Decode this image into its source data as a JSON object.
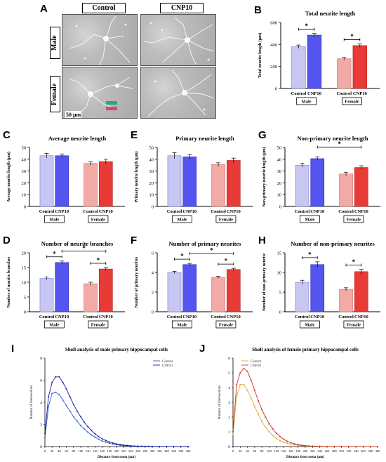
{
  "micrograph": {
    "letter": "A",
    "col_labels": [
      "Control",
      "CNP10"
    ],
    "row_labels": [
      "Male",
      "Female"
    ],
    "scale_bar": "50 μm"
  },
  "colors": {
    "control_male": "#c7c7f2",
    "cnp10_male": "#5454ee",
    "control_female": "#f2aaa6",
    "cnp10_female": "#e83a36",
    "sholl_male_control": "#2e5fd6",
    "sholl_male_cnp10": "#1a1a9e",
    "sholl_female_control": "#e8a830",
    "sholl_female_cnp10": "#c0392b"
  },
  "chart_data": [
    {
      "id": "B",
      "type": "bar",
      "title": "Total neurite length",
      "ylabel": "Total neurite length (μm)",
      "ylim": [
        0,
        600
      ],
      "yticks": [
        0,
        200,
        400,
        600
      ],
      "categories": [
        "Control",
        "CNP10",
        "Control",
        "CNP10"
      ],
      "groups": [
        "Male",
        "Female"
      ],
      "values": [
        380,
        485,
        270,
        390
      ],
      "errors": [
        15,
        15,
        12,
        15
      ],
      "sig": [
        {
          "a": 0,
          "b": 1,
          "label": "*"
        },
        {
          "a": 2,
          "b": 3,
          "label": "*"
        }
      ]
    },
    {
      "id": "C",
      "type": "bar",
      "title": "Average neurite length",
      "ylabel": "Average neurite length (μm)",
      "ylim": [
        0,
        50
      ],
      "yticks": [
        0,
        10,
        20,
        30,
        40,
        50
      ],
      "categories": [
        "Control",
        "CNP10",
        "Control",
        "CNP10"
      ],
      "groups": [
        "Male",
        "Female"
      ],
      "values": [
        43,
        43,
        36.5,
        38
      ],
      "errors": [
        2,
        1.5,
        1.5,
        2
      ],
      "sig": []
    },
    {
      "id": "E",
      "type": "bar",
      "title": "Primary neurite length",
      "ylabel": "Primary neurite length (μm)",
      "ylim": [
        0,
        50
      ],
      "yticks": [
        0,
        10,
        20,
        30,
        40,
        50
      ],
      "categories": [
        "Control",
        "CNP10",
        "Control",
        "CNP10"
      ],
      "groups": [
        "Male",
        "Female"
      ],
      "values": [
        43,
        42,
        35.5,
        39
      ],
      "errors": [
        2.5,
        2,
        1.5,
        2
      ],
      "sig": []
    },
    {
      "id": "G",
      "type": "bar",
      "title": "Non-primary neurite length",
      "ylabel": "Non-primary neurite length (μm)",
      "ylim": [
        0,
        50
      ],
      "yticks": [
        0,
        10,
        20,
        30,
        40,
        50
      ],
      "categories": [
        "Control",
        "CNP10",
        "Control",
        "CNP10"
      ],
      "groups": [
        "Male",
        "Female"
      ],
      "values": [
        35,
        40.5,
        27.5,
        33
      ],
      "errors": [
        1.5,
        1.5,
        1.5,
        1.5
      ],
      "sig": [
        {
          "a": 1,
          "b": 3,
          "label": "*"
        }
      ]
    },
    {
      "id": "D",
      "type": "bar",
      "title": "Number of neurite branches",
      "ylabel": "Number of neurite branches",
      "ylim": [
        0,
        20
      ],
      "yticks": [
        0,
        5,
        10,
        15,
        20
      ],
      "categories": [
        "Control",
        "CNP10",
        "Control",
        "CNP10"
      ],
      "groups": [
        "Male",
        "Female"
      ],
      "values": [
        11.3,
        16.7,
        9.5,
        14.5
      ],
      "errors": [
        0.5,
        0.5,
        0.5,
        0.5
      ],
      "sig": [
        {
          "a": 0,
          "b": 1,
          "label": "*"
        },
        {
          "a": 2,
          "b": 3,
          "label": "*"
        },
        {
          "a": 1,
          "b": 3,
          "label": "*"
        }
      ]
    },
    {
      "id": "F",
      "type": "bar",
      "title": "Number of primary neurites",
      "ylabel": "Number of primary neurites",
      "ylim": [
        0,
        6
      ],
      "yticks": [
        0,
        2,
        4,
        6
      ],
      "categories": [
        "Control",
        "CNP10",
        "Control",
        "CNP10"
      ],
      "groups": [
        "Male",
        "Female"
      ],
      "values": [
        4.0,
        4.8,
        3.5,
        4.3
      ],
      "errors": [
        0.12,
        0.12,
        0.12,
        0.12
      ],
      "sig": [
        {
          "a": 0,
          "b": 1,
          "label": "*"
        },
        {
          "a": 2,
          "b": 3,
          "label": "*"
        },
        {
          "a": 1,
          "b": 3,
          "label": "*"
        }
      ]
    },
    {
      "id": "H",
      "type": "bar",
      "title": "Number of non-primary neurites",
      "ylabel": "Number of non-primary neurite",
      "ylim": [
        0,
        15
      ],
      "yticks": [
        0,
        5,
        10,
        15
      ],
      "categories": [
        "Control",
        "CNP10",
        "Control",
        "CNP10"
      ],
      "groups": [
        "Male",
        "Female"
      ],
      "values": [
        7.5,
        12,
        5.7,
        10.2
      ],
      "errors": [
        0.5,
        0.7,
        0.4,
        0.6
      ],
      "sig": [
        {
          "a": 0,
          "b": 1,
          "label": "*"
        },
        {
          "a": 2,
          "b": 3,
          "label": "*"
        }
      ]
    },
    {
      "id": "I",
      "type": "line",
      "title": "Sholl analysis of male primary hippocampal cells",
      "xlabel": "Distance from soma (μm)",
      "ylabel": "Number of intersections",
      "xlim": [
        0,
        400
      ],
      "ylim": [
        0,
        8
      ],
      "xticks": [
        0,
        20,
        40,
        60,
        80,
        100,
        120,
        140,
        160,
        180,
        200,
        220,
        240,
        260,
        280,
        300,
        320,
        340,
        360,
        380,
        400
      ],
      "yticks": [
        0,
        2,
        4,
        6,
        8
      ],
      "legend": "top-right",
      "x": [
        0,
        10,
        20,
        30,
        40,
        50,
        60,
        70,
        80,
        90,
        100,
        110,
        120,
        130,
        140,
        150,
        160,
        170,
        180,
        190,
        200,
        210,
        220,
        230,
        240,
        250,
        260,
        270,
        280,
        290,
        300,
        320,
        340,
        360,
        380,
        400
      ],
      "series": [
        {
          "name": "Control",
          "values": [
            0.8,
            3.6,
            4.8,
            4.9,
            4.7,
            4.2,
            3.7,
            3.2,
            2.7,
            2.3,
            1.9,
            1.6,
            1.3,
            1.05,
            0.85,
            0.65,
            0.5,
            0.4,
            0.3,
            0.22,
            0.16,
            0.12,
            0.08,
            0.06,
            0.04,
            0.03,
            0.02,
            0.02,
            0.01,
            0.01,
            0.01,
            0,
            0,
            0,
            0,
            0
          ]
        },
        {
          "name": "CNP10",
          "values": [
            1.2,
            4.5,
            5.8,
            6.3,
            6.3,
            5.8,
            5.2,
            4.5,
            3.8,
            3.2,
            2.7,
            2.2,
            1.8,
            1.45,
            1.15,
            0.9,
            0.7,
            0.55,
            0.42,
            0.32,
            0.24,
            0.18,
            0.13,
            0.1,
            0.07,
            0.05,
            0.04,
            0.03,
            0.02,
            0.02,
            0.01,
            0.01,
            0,
            0,
            0,
            0
          ]
        }
      ]
    },
    {
      "id": "J",
      "type": "line",
      "title": "Sholl analysis of female primary hippocampal cells",
      "xlabel": "Distance from soma (μm)",
      "ylabel": "Number of intersections",
      "xlim": [
        0,
        400
      ],
      "ylim": [
        0,
        6
      ],
      "xticks": [
        0,
        20,
        40,
        60,
        80,
        100,
        120,
        140,
        160,
        180,
        200,
        220,
        240,
        260,
        280,
        300,
        320,
        340,
        360,
        380,
        400
      ],
      "yticks": [
        0,
        1,
        2,
        3,
        4,
        5,
        6
      ],
      "legend": "top-left",
      "x": [
        0,
        10,
        20,
        30,
        40,
        50,
        60,
        70,
        80,
        90,
        100,
        110,
        120,
        130,
        140,
        150,
        160,
        170,
        180,
        190,
        200,
        210,
        220,
        240,
        260,
        280,
        300,
        320,
        340,
        360,
        380,
        400
      ],
      "series": [
        {
          "name": "Control",
          "values": [
            0.8,
            3.4,
            4.2,
            4.2,
            3.8,
            3.3,
            2.7,
            2.2,
            1.7,
            1.3,
            1.0,
            0.75,
            0.55,
            0.4,
            0.3,
            0.22,
            0.16,
            0.12,
            0.08,
            0.06,
            0.04,
            0.03,
            0.02,
            0.01,
            0,
            0,
            0,
            0,
            0,
            0,
            0,
            0
          ]
        },
        {
          "name": "CNP10",
          "values": [
            1.0,
            4.2,
            5.0,
            5.3,
            5.1,
            4.5,
            3.8,
            3.1,
            2.5,
            2.0,
            1.55,
            1.2,
            0.9,
            0.68,
            0.5,
            0.36,
            0.26,
            0.19,
            0.13,
            0.09,
            0.06,
            0.04,
            0.03,
            0.02,
            0.01,
            0.01,
            0,
            0,
            0,
            0,
            0,
            0
          ]
        }
      ]
    }
  ]
}
